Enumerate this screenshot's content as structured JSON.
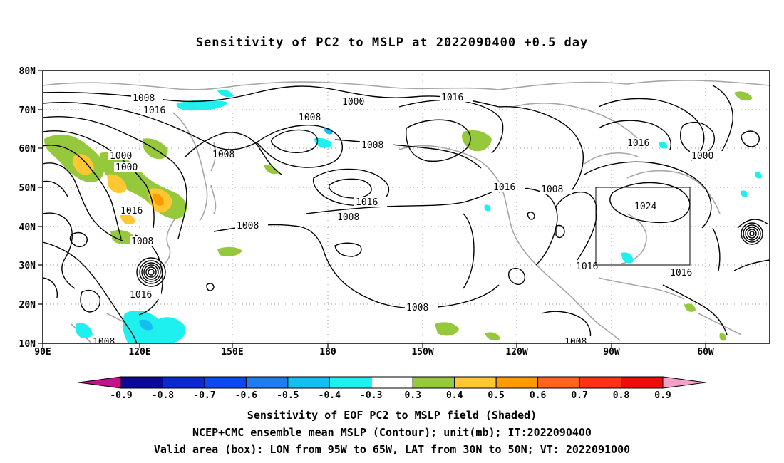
{
  "title": "Sensitivity of PC2 to MSLP at 2022090400 +0.5 day",
  "lat_labels": [
    "80N",
    "70N",
    "60N",
    "50N",
    "40N",
    "30N",
    "20N",
    "10N"
  ],
  "lon_labels": [
    "90E",
    "120E",
    "150E",
    "180",
    "150W",
    "120W",
    "90W",
    "60W"
  ],
  "contour_labels": [
    "1008",
    "1016",
    "1000",
    "1008",
    "1016",
    "1008",
    "1000",
    "1008",
    "1000",
    "1016",
    "1008",
    "1016",
    "1008",
    "1016",
    "1008",
    "1016",
    "1008",
    "1024",
    "1016",
    "1016",
    "1016",
    "1000",
    "1008",
    "1008"
  ],
  "colorbar": {
    "labels": [
      "-0.9",
      "-0.8",
      "-0.7",
      "-0.6",
      "-0.5",
      "-0.4",
      "-0.3",
      "0.3",
      "0.4",
      "0.5",
      "0.6",
      "0.7",
      "0.8",
      "0.9"
    ],
    "colors": [
      "#C0148C",
      "#0A0A96",
      "#0A2ACF",
      "#0A4AF0",
      "#1E7EF0",
      "#14BEF0",
      "#1EF0F0",
      "#FFFFFF",
      "#96C83C",
      "#FFC832",
      "#FF9B00",
      "#FF641E",
      "#FF3214",
      "#F00A0A",
      "#F5A0C8"
    ]
  },
  "valid_box": {
    "lon": [
      "95W",
      "65W"
    ],
    "lat": [
      "30N",
      "50N"
    ]
  },
  "colors": {
    "contour": "#000000",
    "coast": "#a6a6a6",
    "grid": "#9a9a9a"
  },
  "captions": [
    "Sensitivity of EOF PC2 to MSLP field (Shaded)",
    "NCEP+CMC ensemble mean MSLP (Contour); unit(mb); IT:2022090400",
    "Valid area (box): LON from 95W to 65W, LAT from 30N to 50N; VT: 2022091000"
  ]
}
